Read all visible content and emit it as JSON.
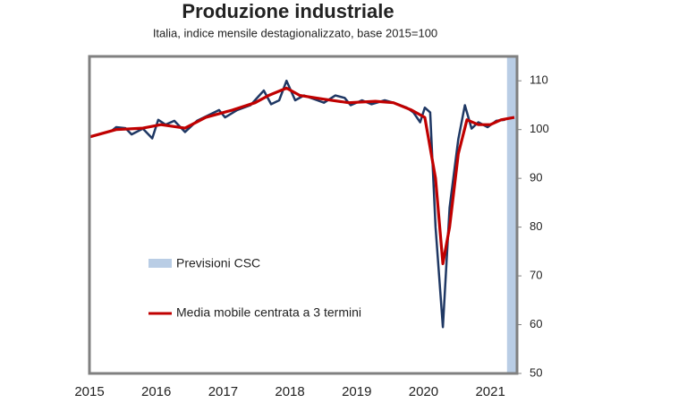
{
  "chart_data": {
    "type": "line",
    "title": "Produzione industriale",
    "subtitle": "Italia, indice mensile destagionalizzato, base 2015=100",
    "xlim": [
      2015,
      2021.4
    ],
    "xticks": [
      2015,
      2016,
      2017,
      2018,
      2019,
      2020,
      2021
    ],
    "ylim": [
      50,
      115
    ],
    "yticks": [
      50,
      60,
      70,
      80,
      90,
      100,
      110
    ],
    "forecast": {
      "label": "Previsioni CSC",
      "range": [
        2021.25,
        2021.4
      ],
      "color": "#b9cde5"
    },
    "series": [
      {
        "color": "#1f3864",
        "x": [
          2015.0,
          2015.33,
          2015.4,
          2015.54,
          2015.63,
          2015.8,
          2015.94,
          2016.03,
          2016.14,
          2016.27,
          2016.43,
          2016.61,
          2016.94,
          2017.03,
          2017.21,
          2017.41,
          2017.61,
          2017.72,
          2017.84,
          2017.95,
          2018.08,
          2018.21,
          2018.41,
          2018.51,
          2018.68,
          2018.82,
          2018.91,
          2019.08,
          2019.22,
          2019.42,
          2019.55,
          2019.75,
          2019.85,
          2019.95,
          2020.02,
          2020.1,
          2020.18,
          2020.29,
          2020.39,
          2020.52,
          2020.62,
          2020.72,
          2020.82,
          2020.96,
          2021.09,
          2021.22
        ],
        "values": [
          98.5,
          99.7,
          100.5,
          100.3,
          99,
          100.2,
          98.2,
          102,
          101,
          101.8,
          99.5,
          101.8,
          104,
          102.5,
          104,
          105,
          108,
          105.2,
          106,
          110,
          106,
          107,
          106,
          105.5,
          107,
          106.5,
          105,
          106,
          105.2,
          106,
          105.5,
          104.5,
          103.5,
          101.5,
          104.5,
          103.5,
          80,
          59.5,
          84,
          98,
          105,
          100.2,
          101.5,
          100.5,
          101.8,
          102
        ]
      },
      {
        "name": "Media mobile centrata a 3 termini",
        "color": "#c00000",
        "x": [
          2015.0,
          2015.4,
          2015.8,
          2016.07,
          2016.43,
          2016.74,
          2017.14,
          2017.48,
          2017.68,
          2017.95,
          2018.15,
          2018.48,
          2018.88,
          2019.28,
          2019.55,
          2019.82,
          2020.02,
          2020.18,
          2020.29,
          2020.39,
          2020.52,
          2020.65,
          2020.82,
          2021.0,
          2021.16,
          2021.36
        ],
        "values": [
          98.5,
          100,
          100.3,
          101,
          100.3,
          102.5,
          104,
          105.5,
          107,
          108.5,
          107,
          106.3,
          105.5,
          105.8,
          105.5,
          104,
          102.5,
          90,
          72.5,
          80,
          95,
          102,
          101,
          101,
          102,
          102.5
        ]
      }
    ]
  }
}
